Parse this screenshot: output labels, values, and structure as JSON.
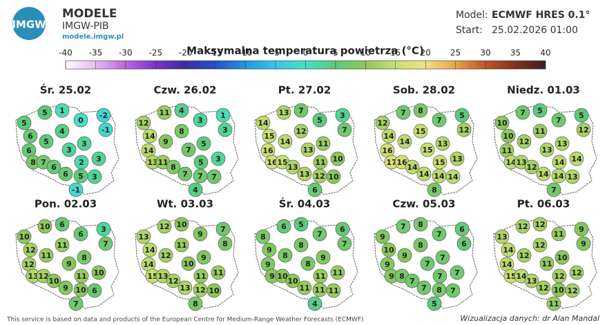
{
  "header": {
    "logo_text": "IMGW",
    "brand": "MODELE",
    "org": "IMGW-PIB",
    "url": "modele.imgw.pl",
    "model_label": "Model:",
    "model": "ECMWF HRES 0.1°",
    "start_label": "Start:",
    "start": "25.02.2026 01:00"
  },
  "title": "Maksymalna temperatura powietrza (°C)",
  "colorbar": {
    "lim": [
      -40,
      40
    ],
    "ticks": [
      -40,
      -35,
      -30,
      -25,
      -20,
      -15,
      -10,
      -5,
      0,
      5,
      10,
      15,
      20,
      25,
      30,
      35,
      40
    ],
    "colors": [
      "#ffffff",
      "#e6b8f0",
      "#b868e0",
      "#7a34c8",
      "#3a2ea0",
      "#2452c4",
      "#2494e0",
      "#34c8e8",
      "#44e0c4",
      "#5cca7a",
      "#8cc85a",
      "#c8e070",
      "#f2e282",
      "#e4a444",
      "#c25424",
      "#84301e",
      "#3c2020"
    ]
  },
  "maps": [
    {
      "title": "Śr. 25.02",
      "values": [
        5,
        5,
        1,
        0,
        -2,
        -1,
        6,
        4,
        5,
        6,
        3,
        3,
        8,
        7,
        6,
        2,
        3,
        5,
        3,
        6,
        -1
      ]
    },
    {
      "title": "Czw. 26.02",
      "values": [
        12,
        11,
        4,
        3,
        1,
        3,
        14,
        8,
        9,
        14,
        7,
        5,
        13,
        11,
        8,
        5,
        3,
        7,
        7,
        7,
        4
      ]
    },
    {
      "title": "Pt. 27.02",
      "values": [
        14,
        13,
        7,
        5,
        3,
        7,
        15,
        12,
        14,
        16,
        13,
        11,
        16,
        15,
        13,
        11,
        10,
        12,
        10,
        13,
        6
      ]
    },
    {
      "title": "Sob. 28.02",
      "values": [
        12,
        7,
        8,
        7,
        5,
        12,
        14,
        15,
        14,
        16,
        15,
        13,
        17,
        16,
        14,
        15,
        13,
        14,
        14,
        14,
        8
      ]
    },
    {
      "title": "Niedz. 01.03",
      "values": [
        10,
        7,
        5,
        7,
        5,
        12,
        10,
        11,
        12,
        11,
        13,
        13,
        14,
        13,
        12,
        14,
        14,
        14,
        13,
        14,
        7
      ]
    },
    {
      "title": "Pon. 02.03",
      "values": [
        10,
        10,
        6,
        6,
        3,
        7,
        12,
        11,
        11,
        12,
        9,
        8,
        13,
        12,
        10,
        11,
        10,
        10,
        6,
        9,
        7
      ]
    },
    {
      "title": "Wt. 03.03",
      "values": [
        13,
        12,
        10,
        9,
        7,
        8,
        14,
        11,
        12,
        14,
        10,
        9,
        15,
        13,
        12,
        11,
        11,
        12,
        10,
        13,
        8
      ]
    },
    {
      "title": "Śr. 04.03",
      "values": [
        8,
        6,
        5,
        7,
        6,
        7,
        9,
        8,
        8,
        9,
        8,
        9,
        9,
        10,
        10,
        11,
        11,
        11,
        11,
        11,
        4
      ]
    },
    {
      "title": "Czw. 05.03",
      "values": [
        9,
        7,
        8,
        7,
        6,
        6,
        10,
        8,
        9,
        9,
        7,
        7,
        9,
        8,
        7,
        7,
        7,
        8,
        7,
        7,
        5
      ]
    },
    {
      "title": "Pt. 06.03",
      "values": [
        13,
        12,
        12,
        11,
        9,
        9,
        14,
        12,
        12,
        14,
        11,
        10,
        15,
        14,
        13,
        12,
        12,
        10,
        12,
        12,
        11
      ]
    }
  ],
  "footer": {
    "source": "This service is based on data and products of the European Centre for Medium-Range Weather Forecasts (ECMWF)",
    "credit": "Wizualizacja danych: dr Alan Mandal"
  }
}
